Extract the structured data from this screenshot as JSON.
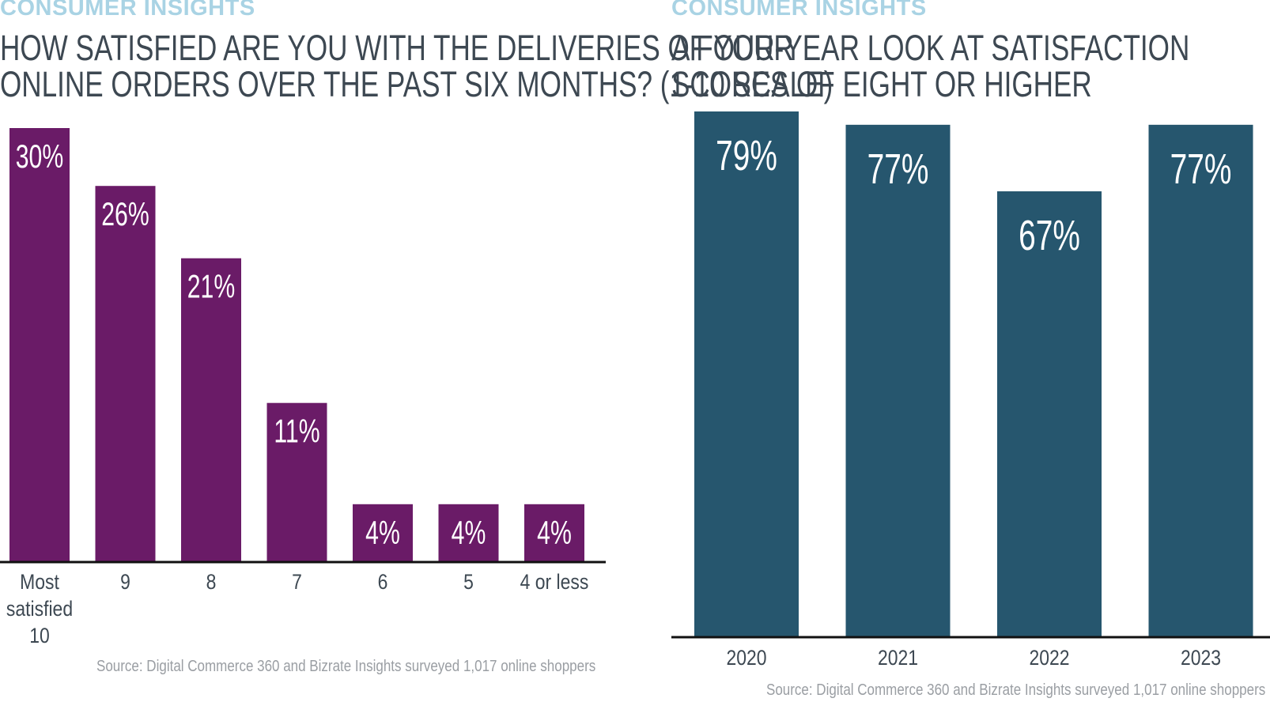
{
  "colors": {
    "kicker": "#a9d3e4",
    "left_bars": "#6a1b67",
    "right_bars": "#26566e",
    "axis": "#111111",
    "title": "#3d4852",
    "source": "#9a9ea3"
  },
  "chart_data": [
    {
      "type": "bar",
      "kicker": "CONSUMER INSIGHTS",
      "title_lines": [
        "HOW SATISFIED ARE YOU WITH THE DELIVERIES OF YOUR",
        "ONLINE ORDERS OVER THE PAST SIX MONTHS? (1-10 SCALE)"
      ],
      "categories": [
        [
          "Most",
          "satisfied",
          "10"
        ],
        [
          "9"
        ],
        [
          "8"
        ],
        [
          "7"
        ],
        [
          "6"
        ],
        [
          "5"
        ],
        [
          "4 or less"
        ]
      ],
      "values": [
        30,
        26,
        21,
        11,
        4,
        4,
        4
      ],
      "value_labels": [
        "30%",
        "26%",
        "21%",
        "11%",
        "4%",
        "4%",
        "4%"
      ],
      "ylim": [
        0,
        30
      ],
      "grid": false,
      "source": "Source: Digital Commerce 360 and Bizrate Insights surveyed 1,017 online shoppers"
    },
    {
      "type": "bar",
      "kicker": "CONSUMER INSIGHTS",
      "title_lines": [
        "A FOUR-YEAR LOOK AT SATISFACTION",
        "SCORES OF EIGHT OR HIGHER"
      ],
      "categories": [
        [
          "2020"
        ],
        [
          "2021"
        ],
        [
          "2022"
        ],
        [
          "2023"
        ]
      ],
      "values": [
        79,
        77,
        67,
        77
      ],
      "value_labels": [
        "79%",
        "77%",
        "67%",
        "77%"
      ],
      "ylim": [
        0,
        79
      ],
      "grid": false,
      "source": "Source: Digital Commerce 360 and Bizrate Insights surveyed 1,017 online shoppers"
    }
  ]
}
